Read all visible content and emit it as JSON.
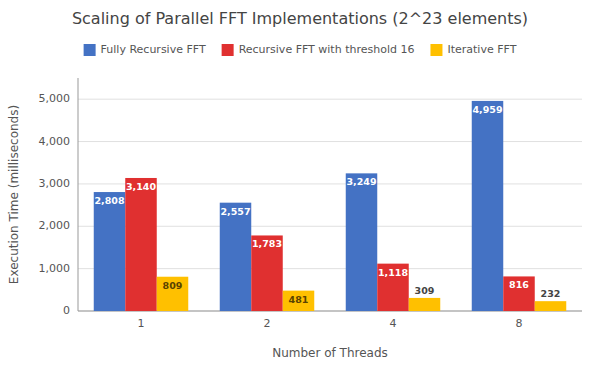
{
  "chart_data": {
    "type": "bar",
    "title": "Scaling of Parallel FFT Implementations (2^23 elements)",
    "xlabel": "Number of Threads",
    "ylabel": "Execution Time (milliseconds)",
    "categories": [
      1,
      2,
      4,
      8
    ],
    "series": [
      {
        "name": "Fully Recursive FFT",
        "color": "#4472C4",
        "values": [
          2808,
          2557,
          3249,
          4959
        ],
        "value_labels": [
          "2,808",
          "2,557",
          "3,249",
          "4,959"
        ]
      },
      {
        "name": "Recursive FFT with threshold 16",
        "color": "#E03030",
        "values": [
          3140,
          1783,
          1118,
          816
        ],
        "value_labels": [
          "3,140",
          "1,783",
          "1,118",
          "816"
        ]
      },
      {
        "name": "Iterative FFT",
        "color": "#FFC000",
        "values": [
          809,
          481,
          309,
          232
        ],
        "value_labels": [
          "809",
          "481",
          "309",
          "232"
        ]
      }
    ],
    "ylim": [
      0,
      5500
    ],
    "yticks": [
      0,
      {
        "value": 1000,
        "label": "1,000"
      },
      {
        "value": 2000,
        "label": "2,000"
      },
      {
        "value": 3000,
        "label": "3,000"
      },
      {
        "value": 4000,
        "label": "4,000"
      },
      {
        "value": 5000,
        "label": "5,000"
      }
    ],
    "grid": true,
    "legend": "top",
    "data_labels": true
  }
}
